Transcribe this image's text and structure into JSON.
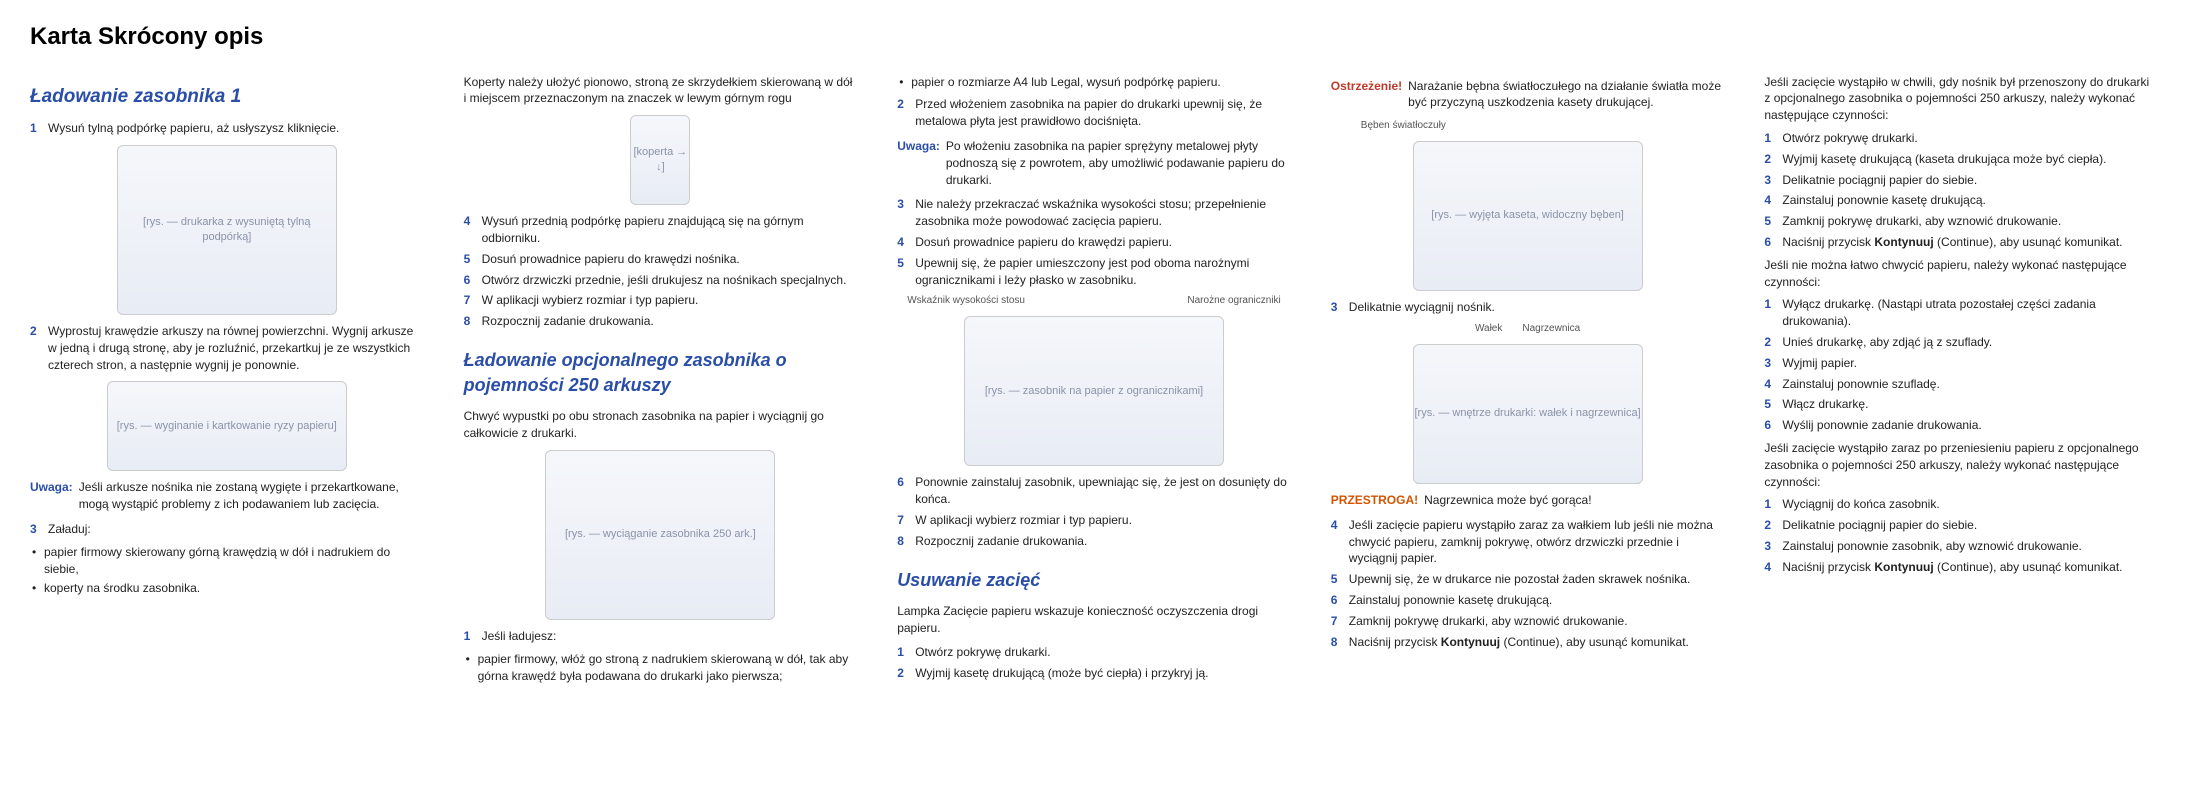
{
  "colors": {
    "accent": "#2a4ea8",
    "text": "#222222",
    "warnRed": "#c0392b",
    "warnOrange": "#d35400"
  },
  "title": "Karta Skrócony opis",
  "col1": {
    "h2": "Ładowanie zasobnika 1",
    "step1": "Wysuń tylną podpórkę papieru, aż usłyszysz kliknięcie.",
    "fig1": "[rys. — drukarka z wysuniętą tylną podpórką]",
    "step2": "Wyprostuj krawędzie arkuszy na równej powierzchni. Wygnij arkusze w jedną i drugą stronę, aby je rozluźnić, przekartkuj je ze wszystkich czterech stron, a następnie wygnij je ponownie.",
    "fig2": "[rys. — wyginanie i kartkowanie ryzy papieru]",
    "noteLabel": "Uwaga:",
    "noteText": "Jeśli arkusze nośnika nie zostaną wygięte i przekartkowane, mogą wystąpić problemy z ich podawaniem lub zacięcia.",
    "step3": "Załaduj:",
    "bullet1": "papier firmowy skierowany górną krawędzią w dół i nadrukiem do siebie,",
    "bullet2": "koperty na środku zasobnika."
  },
  "col2": {
    "intro": "Koperty należy ułożyć pionowo, stroną ze skrzydełkiem skierowaną w dół i miejscem przeznaczonym na znaczek w lewym górnym rogu",
    "figEnv": "[koperta → ↓]",
    "s4": "Wysuń przednią podpórkę papieru znajdującą się na górnym odbiorniku.",
    "s5": "Dosuń prowadnice papieru do krawędzi nośnika.",
    "s6": "Otwórz drzwiczki przednie, jeśli drukujesz na nośnikach specjalnych.",
    "s7": "W aplikacji wybierz rozmiar i typ papieru.",
    "s8": "Rozpocznij zadanie drukowania.",
    "h2": "Ładowanie opcjonalnego zasobnika o pojemności 250 arkuszy",
    "intro2": "Chwyć wypustki po obu stronach zasobnika na papier i wyciągnij go całkowicie z drukarki.",
    "figTray": "[rys. — wyciąganie zasobnika 250 ark.]",
    "s1b": "Jeśli ładujesz:",
    "bullet": "papier firmowy, włóż go stroną z nadrukiem skierowaną w dół, tak aby górna krawędź była podawana do drukarki jako pierwsza;"
  },
  "col3": {
    "bulletTop": "papier o rozmiarze A4 lub Legal, wysuń podpórkę papieru.",
    "s2": "Przed włożeniem zasobnika na papier do drukarki upewnij się, że metalowa płyta jest prawidłowo dociśnięta.",
    "noteLabel": "Uwaga:",
    "noteText": "Po włożeniu zasobnika na papier sprężyny metalowej płyty podnoszą się z powrotem, aby umożliwić podawanie papieru do drukarki.",
    "s3": "Nie należy przekraczać wskaźnika wysokości stosu; przepełnienie zasobnika może powodować zacięcia papieru.",
    "s4": "Dosuń prowadnice papieru do krawędzi papieru.",
    "s5": "Upewnij się, że papier umieszczony jest pod oboma narożnymi ogranicznikami i leży płasko w zasobniku.",
    "figLabelL": "Wskaźnik wysokości stosu",
    "figLabelR": "Narożne ograniczniki",
    "figTray": "[rys. — zasobnik na papier z ogranicznikami]",
    "s6": "Ponownie zainstaluj zasobnik, upewniając się, że jest on dosunięty do końca.",
    "s7": "W aplikacji wybierz rozmiar i typ papieru.",
    "s8": "Rozpocznij zadanie drukowania.",
    "h2": "Usuwanie zacięć",
    "intro": "Lampka Zacięcie papieru wskazuje konieczność oczyszczenia drogi papieru.",
    "j1": "Otwórz pokrywę drukarki.",
    "j2": "Wyjmij kasetę drukującą (może być ciepła) i przykryj ją."
  },
  "col4": {
    "warnLabel": "Ostrzeżenie!",
    "warnText": "Narażanie bębna światłoczułego na działanie światła może być przyczyną uszkodzenia kasety drukującej.",
    "figLabel1": "Bęben światłoczuły",
    "fig1": "[rys. — wyjęta kaseta, widoczny bęben]",
    "s3": "Delikatnie wyciągnij nośnik.",
    "figLabel2a": "Nagrzewnica",
    "figLabel2b": "Wałek",
    "fig2": "[rys. — wnętrze drukarki: wałek i nagrzewnica]",
    "cautionLabel": "PRZESTROGA!",
    "cautionText": "Nagrzewnica może być gorąca!",
    "s4": "Jeśli zacięcie papieru wystąpiło zaraz za wałkiem lub jeśli nie można chwycić papieru, zamknij pokrywę, otwórz drzwiczki przednie i wyciągnij papier.",
    "s5": "Upewnij się, że w drukarce nie pozostał żaden skrawek nośnika.",
    "s6": "Zainstaluj ponownie kasetę drukującą.",
    "s7": "Zamknij pokrywę drukarki, aby wznowić drukowanie.",
    "s8pre": "Naciśnij przycisk ",
    "s8b": "Kontynuuj",
    "s8post": " (Continue), aby usunąć komunikat."
  },
  "col5": {
    "intro": "Jeśli zacięcie wystąpiło w chwili, gdy nośnik był przenoszony do drukarki z opcjonalnego zasobnika o pojemności 250 arkuszy, należy wykonać następujące czynności:",
    "a1": "Otwórz pokrywę drukarki.",
    "a2": "Wyjmij kasetę drukującą (kaseta drukująca może być ciepła).",
    "a3": "Delikatnie pociągnij papier do siebie.",
    "a4": "Zainstaluj ponownie kasetę drukującą.",
    "a5": "Zamknij pokrywę drukarki, aby wznowić drukowanie.",
    "a6pre": "Naciśnij przycisk ",
    "a6b": "Kontynuuj",
    "a6post": " (Continue), aby usunąć komunikat.",
    "mid": "Jeśli nie można łatwo chwycić papieru, należy wykonać następujące czynności:",
    "b1": "Wyłącz drukarkę. (Nastąpi utrata pozostałej części zadania drukowania).",
    "b2": "Unieś drukarkę, aby zdjąć ją z szuflady.",
    "b3": "Wyjmij papier.",
    "b4": "Zainstaluj ponownie szufladę.",
    "b5": "Włącz drukarkę.",
    "b6": "Wyślij ponownie zadanie drukowania.",
    "mid2": "Jeśli zacięcie wystąpiło zaraz po przeniesieniu papieru z opcjonalnego zasobnika o pojemności 250 arkuszy, należy wykonać następujące czynności:",
    "c1": "Wyciągnij do końca zasobnik.",
    "c2": "Delikatnie pociągnij papier do siebie.",
    "c3": "Zainstaluj ponownie zasobnik, aby wznowić drukowanie.",
    "c4pre": "Naciśnij przycisk ",
    "c4b": "Kontynuuj",
    "c4post": " (Continue), aby usunąć komunikat."
  }
}
